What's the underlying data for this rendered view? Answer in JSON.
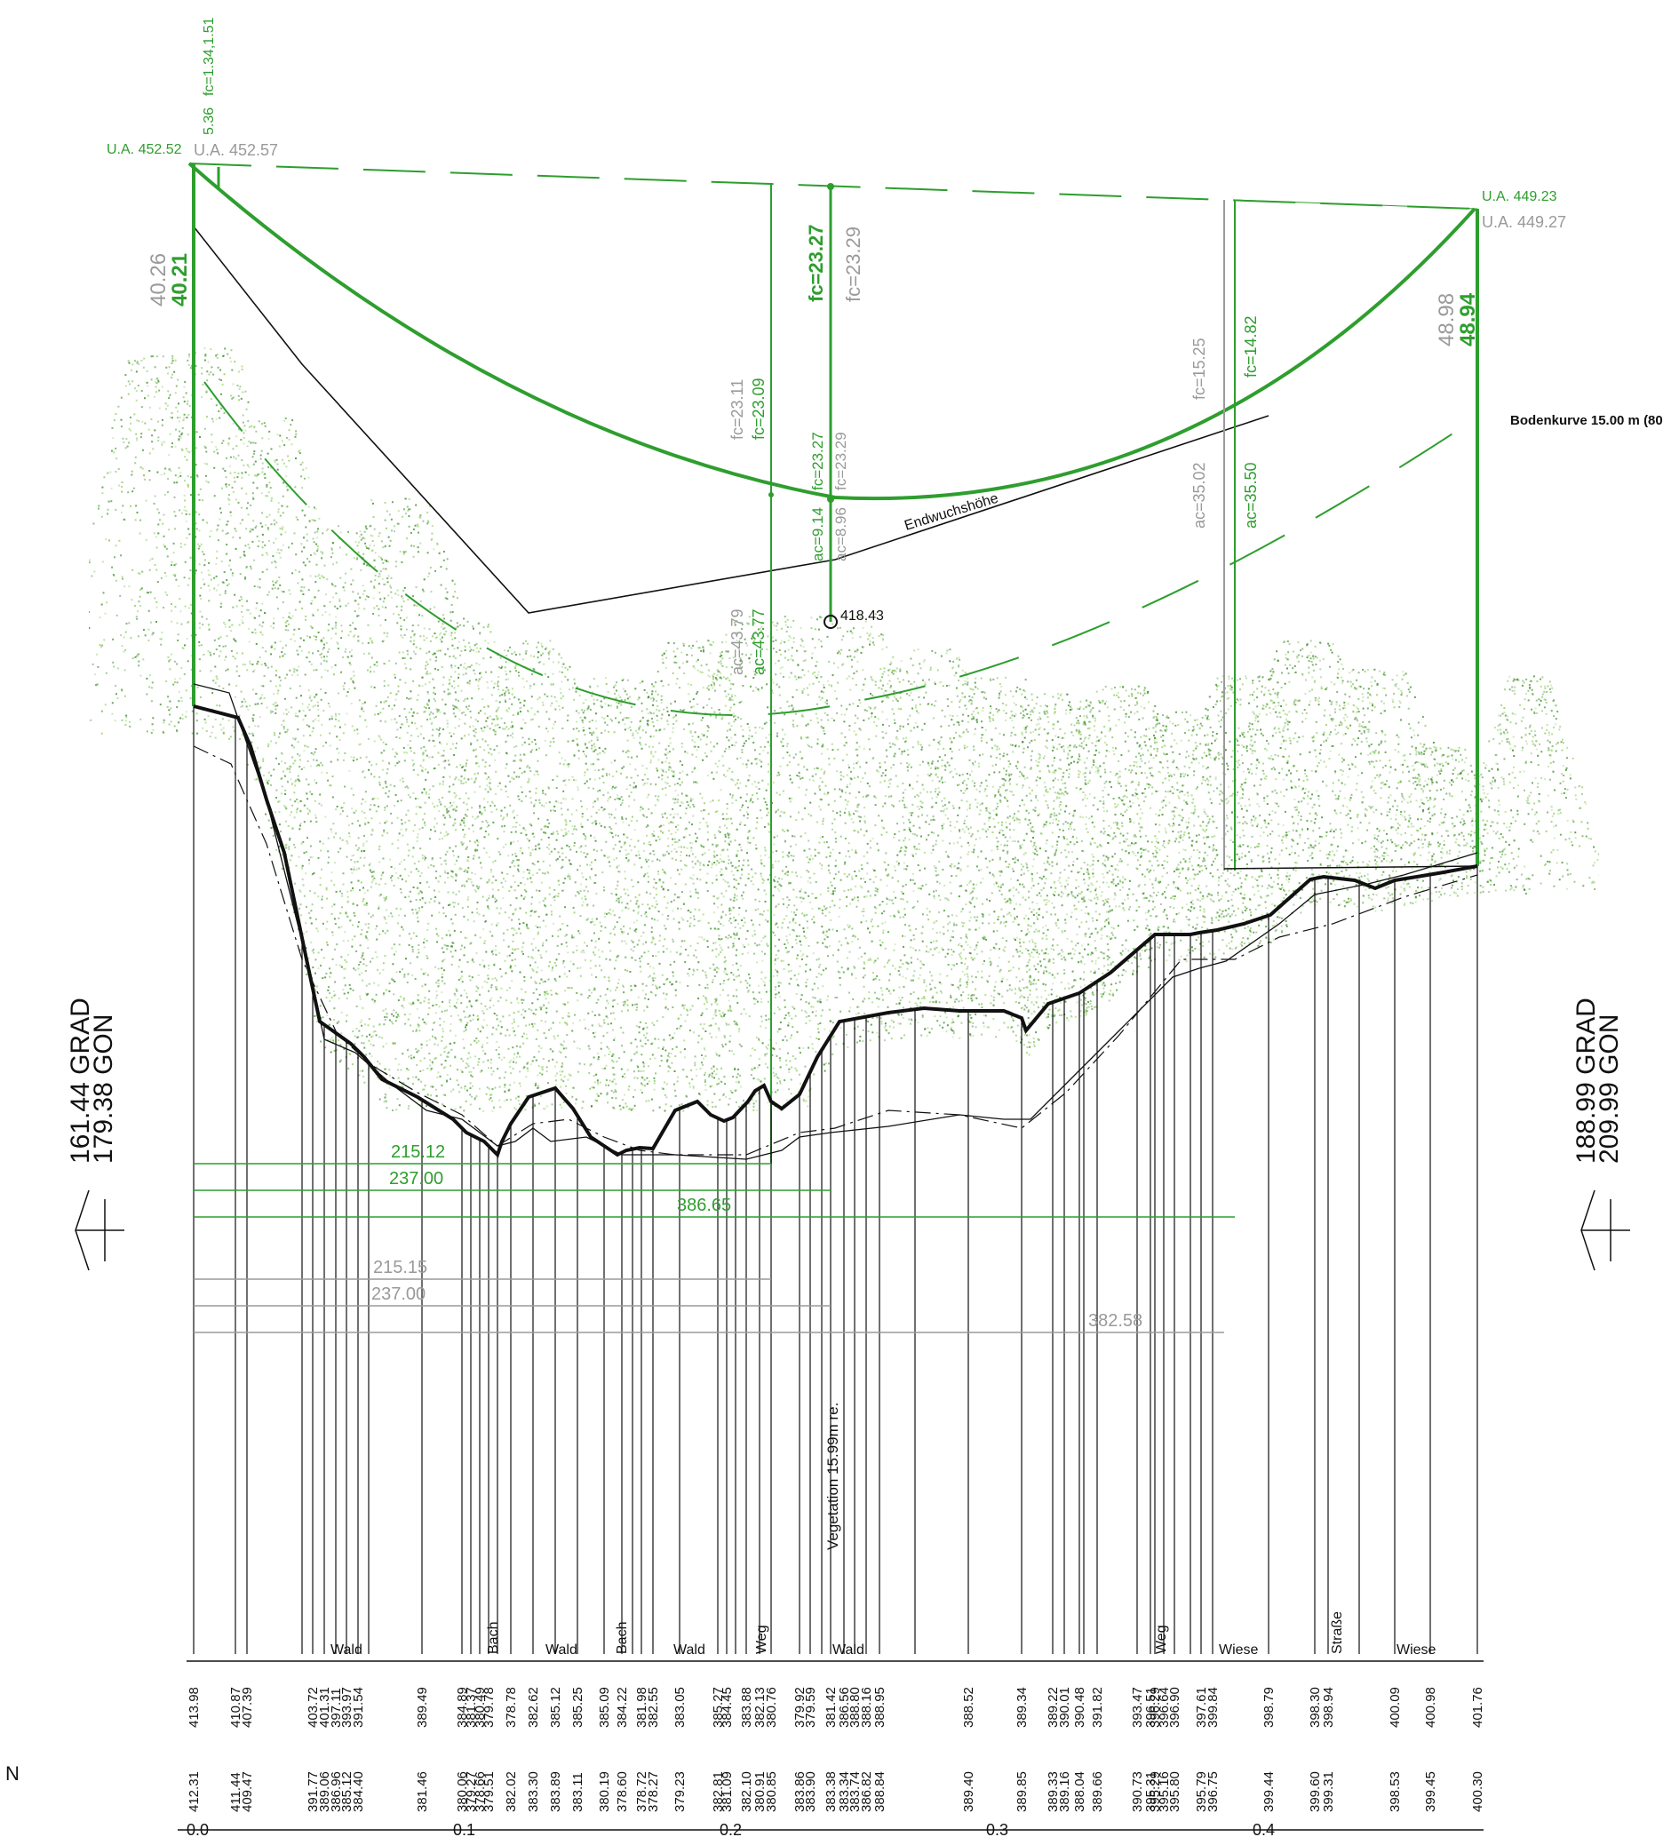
{
  "colors": {
    "green": "#2e9e2e",
    "gray": "#9a9a9a",
    "ground": "#111111",
    "vegetation_dark": "#3f8f2a",
    "vegetation_light": "#8fce5f"
  },
  "top_left": {
    "fc_label": "fc=1.34,1.51",
    "sag_label": "5.36",
    "ua_new": "U.A. 452.52",
    "ua_old": "U.A. 452.57",
    "height_old": "40.26",
    "height_new": "40.21"
  },
  "top_right": {
    "ua_new": "U.A. 449.23",
    "ua_old": "U.A. 449.27",
    "height_old": "48.98",
    "height_new": "48.94"
  },
  "cable_labels": {
    "fc_mid_new": "fc=23.27",
    "fc_mid_old": "fc=23.29",
    "fc_left_old": "fc=23.11",
    "fc_left_new": "fc=23.09",
    "fc_low_new": "fc=23.27",
    "fc_low_old": "fc=23.29",
    "ac_mid_new": "ac=9.14",
    "ac_mid_old": "ac=8.96",
    "ac_left_old": "ac=43.79",
    "ac_left_new": "ac=43.77",
    "fc_right_old": "fc=15.25",
    "fc_right_new": "fc=14.82",
    "ac_right_old": "ac=35.02",
    "ac_right_new": "ac=35.50"
  },
  "point_label": "418.43",
  "endwuchs_label": "Endwuchshöhe",
  "bodenkurve_label": "Bodenkurve 15.00 m (80",
  "left_angle": {
    "grad": "161.44 GRAD",
    "gon": "179.38 GON"
  },
  "right_angle": {
    "grad": "188.99 GRAD",
    "gon": "209.99 GON"
  },
  "dims_green": [
    "215.12",
    "237.00",
    "386.65"
  ],
  "dims_gray": [
    "215.15",
    "237.00",
    "382.58"
  ],
  "vegetation_label": "Vegetation 15.99m re.",
  "land_use": [
    "Wald",
    "Bach",
    "Wald",
    "Bach",
    "Wald",
    "Weg",
    "Wald",
    "Weg",
    "Wiese",
    "Straße",
    "Wiese"
  ],
  "elev_row1": [
    "413.98",
    "410.87",
    "407.39",
    "403.72",
    "401.31",
    "397.11",
    "393.97",
    "391.54",
    "389.49",
    "384.89",
    "381.37",
    "380.49",
    "379.78",
    "378.78",
    "382.62",
    "385.12",
    "385.25",
    "385.09",
    "384.22",
    "381.98",
    "382.55",
    "383.05",
    "385.27",
    "384.45",
    "383.88",
    "382.13",
    "380.76",
    "379.92",
    "379.59",
    "381.42",
    "386.56",
    "388.80",
    "388.16",
    "388.95",
    "388.52",
    "389.34",
    "389.22",
    "390.01",
    "390.48",
    "391.82",
    "393.47",
    "396.51",
    "396.29",
    "396.64",
    "396.90",
    "397.61",
    "399.84",
    "398.79",
    "398.30",
    "398.94",
    "400.09",
    "400.98",
    "401.76"
  ],
  "elev_row2": [
    "412.31",
    "411.44",
    "409.47",
    "391.77",
    "389.06",
    "386.96",
    "385.12",
    "384.40",
    "381.46",
    "380.06",
    "379.27",
    "378.66",
    "379.51",
    "382.02",
    "383.30",
    "383.89",
    "383.11",
    "380.19",
    "378.60",
    "378.72",
    "378.27",
    "379.23",
    "382.81",
    "381.09",
    "382.10",
    "380.91",
    "380.85",
    "383.86",
    "383.90",
    "383.38",
    "383.34",
    "383.74",
    "386.82",
    "388.84",
    "389.40",
    "389.85",
    "389.33",
    "389.16",
    "388.04",
    "389.66",
    "390.73",
    "395.31",
    "395.29",
    "395.16",
    "395.80",
    "395.79",
    "396.75",
    "399.44",
    "399.60",
    "399.31",
    "398.53",
    "399.45",
    "400.30"
  ],
  "axis_labels": [
    "0.0",
    "0.1",
    "0.2",
    "0.3",
    "0.4"
  ],
  "corner_mark": "N"
}
